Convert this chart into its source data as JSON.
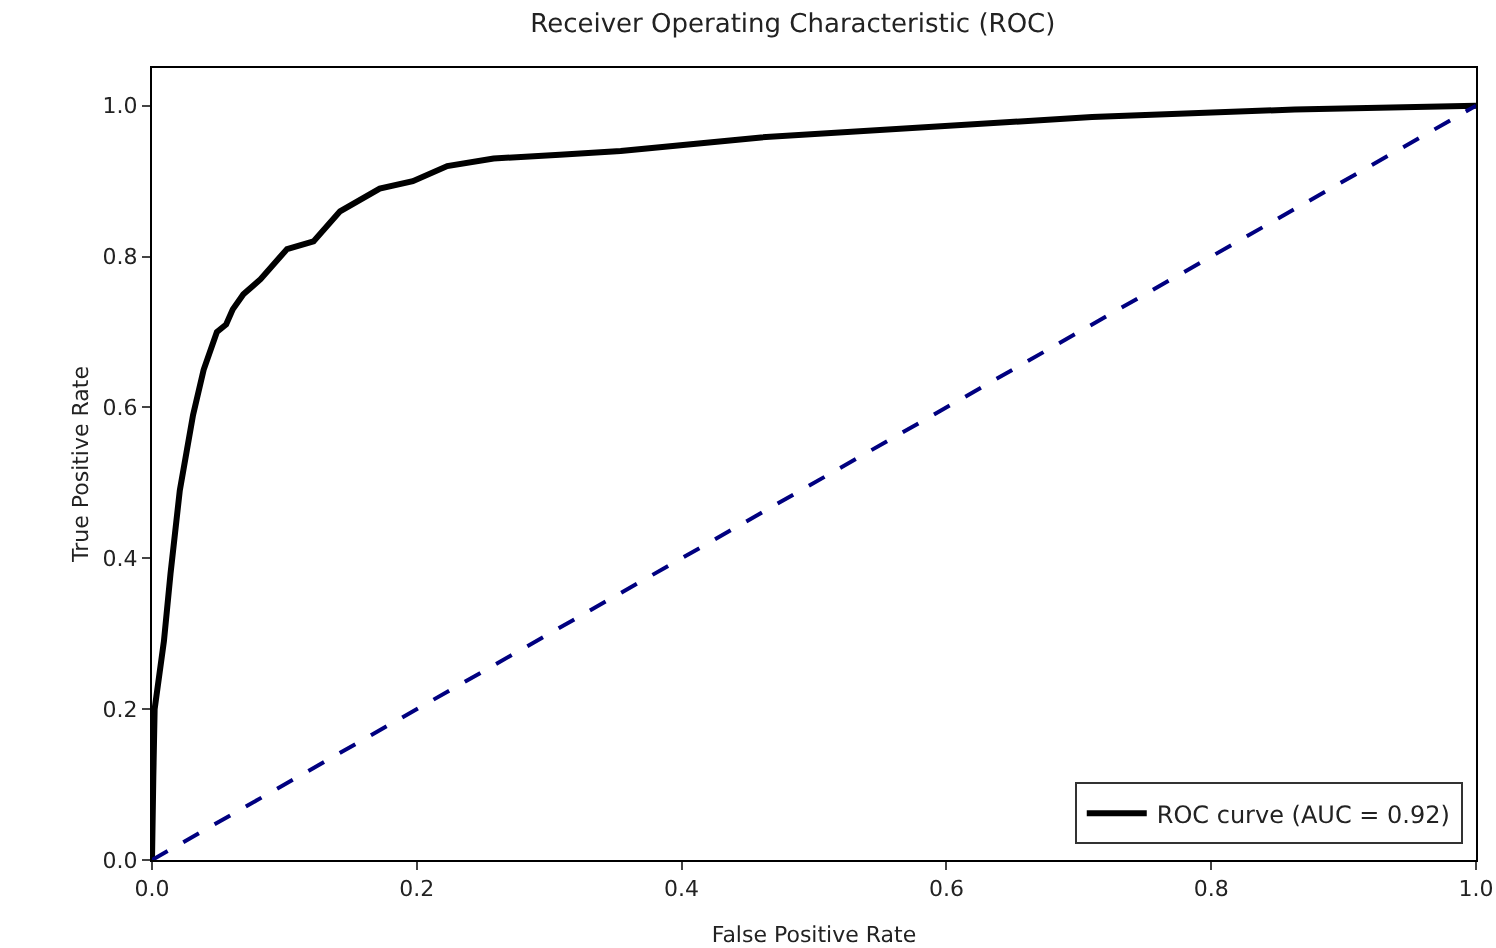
{
  "chart_data": {
    "type": "line",
    "title": "Receiver Operating Characteristic (ROC)",
    "xlabel": "False Positive Rate",
    "ylabel": "True Positive Rate",
    "series": [
      {
        "name": "ROC curve (AUC = 0.92)",
        "color": "#000000",
        "line_style": "solid",
        "x": [
          0,
          0.001,
          0.002,
          0.009,
          0.014,
          0.021,
          0.026,
          0.031,
          0.039,
          0.049,
          0.056,
          0.061,
          0.069,
          0.082,
          0.102,
          0.122,
          0.142,
          0.172,
          0.197,
          0.223,
          0.258,
          0.308,
          0.354,
          0.46,
          0.71,
          0.863,
          1
        ],
        "values": [
          0,
          0.11,
          0.2,
          0.29,
          0.38,
          0.49,
          0.54,
          0.59,
          0.65,
          0.7,
          0.71,
          0.73,
          0.75,
          0.77,
          0.81,
          0.82,
          0.86,
          0.89,
          0.9,
          0.92,
          0.93,
          0.935,
          0.94,
          0.958,
          0.985,
          0.995,
          1
        ]
      },
      {
        "color": "#000080",
        "line_style": "dashed",
        "x": [
          0,
          1
        ],
        "values": [
          0,
          1
        ]
      }
    ],
    "xlim": [
      0,
      1
    ],
    "ylim": [
      0,
      1.05
    ],
    "xticks": [
      {
        "value": 0,
        "label": "0.0"
      },
      {
        "value": 0.2,
        "label": "0.2"
      },
      {
        "value": 0.4,
        "label": "0.4"
      },
      {
        "value": 0.6,
        "label": "0.6"
      },
      {
        "value": 0.8,
        "label": "0.8"
      },
      {
        "value": 1,
        "label": "1.0"
      }
    ],
    "yticks": [
      {
        "value": 0,
        "label": "0.0"
      },
      {
        "value": 0.2,
        "label": "0.2"
      },
      {
        "value": 0.4,
        "label": "0.4"
      },
      {
        "value": 0.6,
        "label": "0.6"
      },
      {
        "value": 0.8,
        "label": "0.8"
      },
      {
        "value": 1,
        "label": "1.0"
      }
    ],
    "grid": false,
    "legend": "bottom right",
    "marker": "none"
  }
}
